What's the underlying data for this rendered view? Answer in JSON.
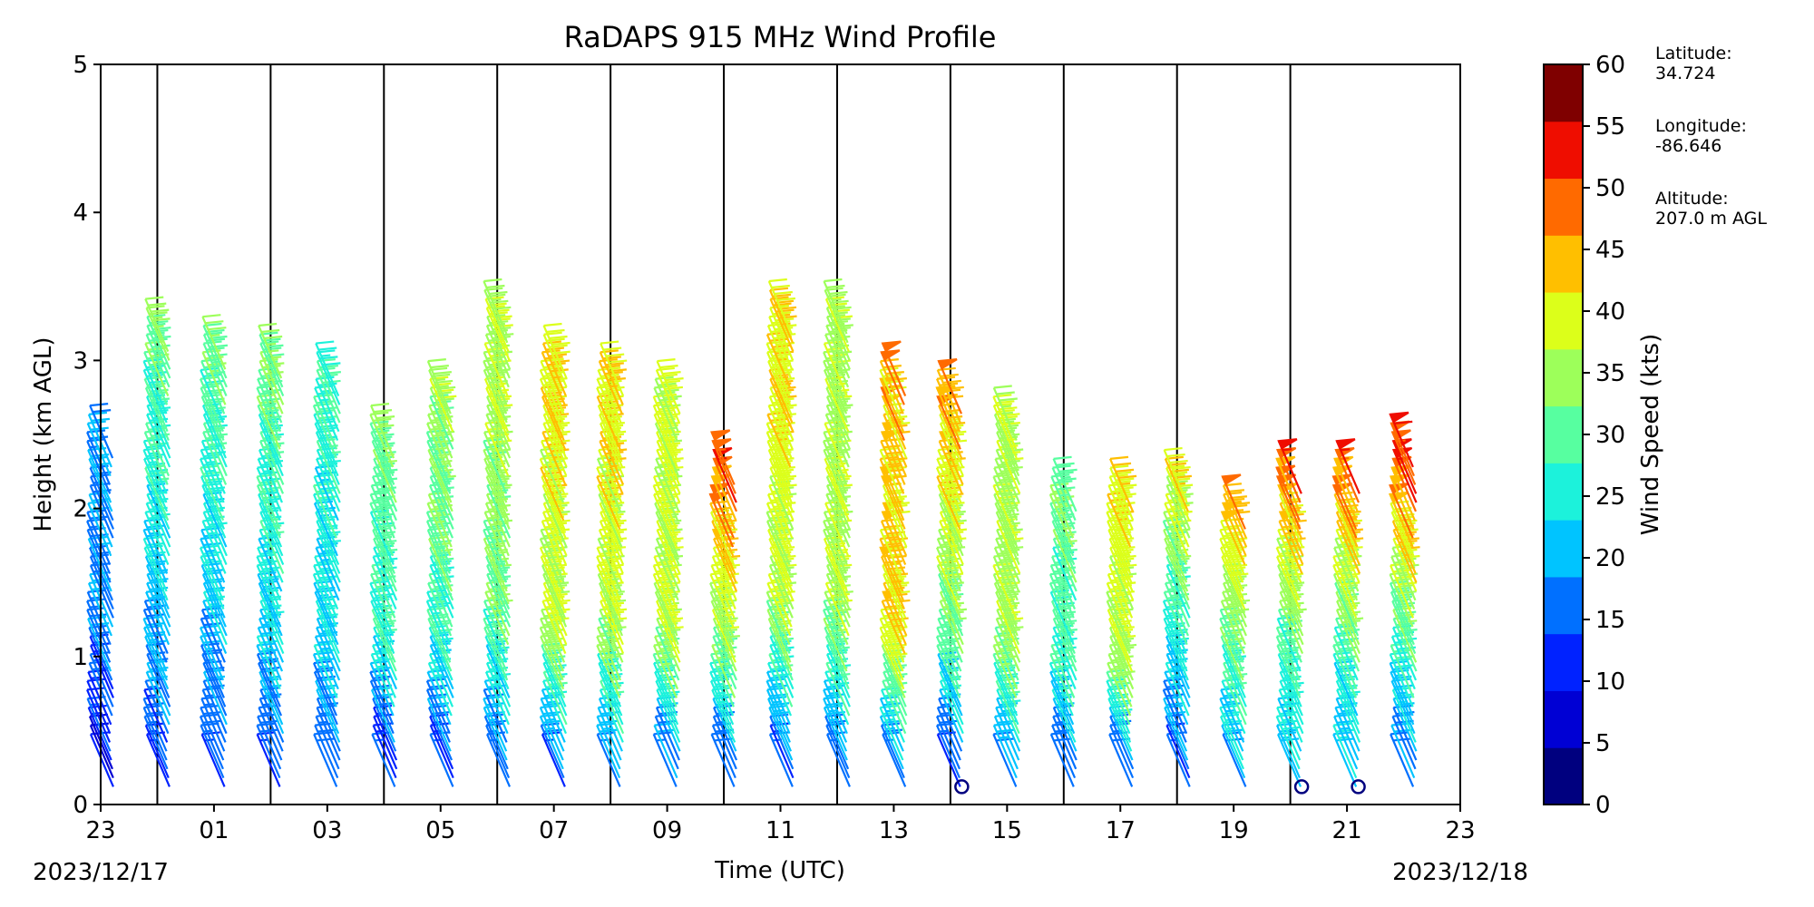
{
  "chart_data": {
    "type": "wind_barbs",
    "title": "RaDAPS 915 MHz Wind Profile",
    "xlabel": "Time (UTC)",
    "ylabel": "Height (km AGL)",
    "ylim": [
      0,
      5
    ],
    "yticks": [
      "0",
      "1",
      "2",
      "3",
      "4",
      "5"
    ],
    "xlim": [
      "2023-12-17 23:00",
      "2023-12-18 23:00"
    ],
    "xticks": [
      "23",
      "01",
      "03",
      "05",
      "07",
      "09",
      "11",
      "13",
      "15",
      "17",
      "19",
      "21",
      "23"
    ],
    "date_start": "2023/12/17",
    "date_end": "2023/12/18",
    "vertical_gridlines_hours": [
      1,
      3,
      5,
      7,
      9,
      11,
      13,
      15,
      17,
      19,
      21
    ],
    "colorbar": {
      "label": "Wind Speed (kts)",
      "ticks": [
        "0",
        "5",
        "10",
        "15",
        "20",
        "25",
        "30",
        "35",
        "40",
        "45",
        "50",
        "55",
        "60"
      ],
      "colors": [
        "#00007f",
        "#0000d4",
        "#0022ff",
        "#0070ff",
        "#00c4ff",
        "#1cf2db",
        "#57ffa0",
        "#9dff5a",
        "#dcff1a",
        "#ffbf00",
        "#ff6a00",
        "#ef0d00",
        "#7f0000"
      ]
    },
    "profiles": [
      {
        "hour": 0,
        "top": 2.4,
        "speeds_low": 8,
        "speeds_mid": 18,
        "speeds_high": 20
      },
      {
        "hour": 1,
        "top": 3.1,
        "speeds_low": 15,
        "speeds_mid": 22,
        "speeds_high": 35
      },
      {
        "hour": 2,
        "top": 3.0,
        "speeds_low": 15,
        "speeds_mid": 22,
        "speeds_high": 35
      },
      {
        "hour": 3,
        "top": 2.9,
        "speeds_low": 15,
        "speeds_mid": 25,
        "speeds_high": 35
      },
      {
        "hour": 4,
        "top": 2.8,
        "speeds_low": 15,
        "speeds_mid": 25,
        "speeds_high": 30
      },
      {
        "hour": 5,
        "top": 2.4,
        "speeds_low": 10,
        "speeds_mid": 28,
        "speeds_high": 35
      },
      {
        "hour": 6,
        "top": 2.7,
        "speeds_low": 12,
        "speeds_mid": 30,
        "speeds_high": 38
      },
      {
        "hour": 7,
        "top": 3.2,
        "speeds_low": 15,
        "speeds_mid": 35,
        "speeds_high": 40
      },
      {
        "hour": 8,
        "top": 2.9,
        "speeds_low": 15,
        "speeds_mid": 40,
        "speeds_high": 45
      },
      {
        "hour": 9,
        "top": 2.8,
        "speeds_low": 15,
        "speeds_mid": 40,
        "speeds_high": 45
      },
      {
        "hour": 10,
        "top": 2.7,
        "speeds_low": 12,
        "speeds_mid": 40,
        "speeds_high": 42
      },
      {
        "hour": 11,
        "top": 2.2,
        "speeds_low": 12,
        "speeds_mid": 35,
        "speeds_high": 55
      },
      {
        "hour": 12,
        "top": 3.2,
        "speeds_low": 12,
        "speeds_mid": 40,
        "speeds_high": 45
      },
      {
        "hour": 13,
        "top": 3.2,
        "speeds_low": 15,
        "speeds_mid": 38,
        "speeds_high": 38
      },
      {
        "hour": 14,
        "top": 2.8,
        "speeds_low": 15,
        "speeds_mid": 45,
        "speeds_high": 48
      },
      {
        "hour": 15,
        "top": 2.7,
        "speeds_low": 10,
        "speeds_mid": 35,
        "speeds_high": 50
      },
      {
        "hour": 16,
        "top": 2.5,
        "speeds_low": 15,
        "speeds_mid": 38,
        "speeds_high": 38
      },
      {
        "hour": 17,
        "top": 2.0,
        "speeds_low": 12,
        "speeds_mid": 30,
        "speeds_high": 35
      },
      {
        "hour": 18,
        "top": 2.0,
        "speeds_low": 12,
        "speeds_mid": 38,
        "speeds_high": 45
      },
      {
        "hour": 19,
        "top": 2.1,
        "speeds_low": 15,
        "speeds_mid": 25,
        "speeds_high": 45
      },
      {
        "hour": 20,
        "top": 1.9,
        "speeds_low": 20,
        "speeds_mid": 30,
        "speeds_high": 50
      },
      {
        "hour": 21,
        "top": 2.15,
        "speeds_low": 22,
        "speeds_mid": 30,
        "speeds_high": 55
      },
      {
        "hour": 22,
        "top": 2.15,
        "speeds_low": 20,
        "speeds_mid": 30,
        "speeds_high": 55
      },
      {
        "hour": 23,
        "top": 2.3,
        "speeds_low": 15,
        "speeds_mid": 30,
        "speeds_high": 58
      }
    ]
  },
  "station": {
    "latitude_label": "Latitude:",
    "latitude_value": "34.724",
    "longitude_label": "Longitude:",
    "longitude_value": "-86.646",
    "altitude_label": "Altitude:",
    "altitude_value": "207.0 m AGL"
  }
}
